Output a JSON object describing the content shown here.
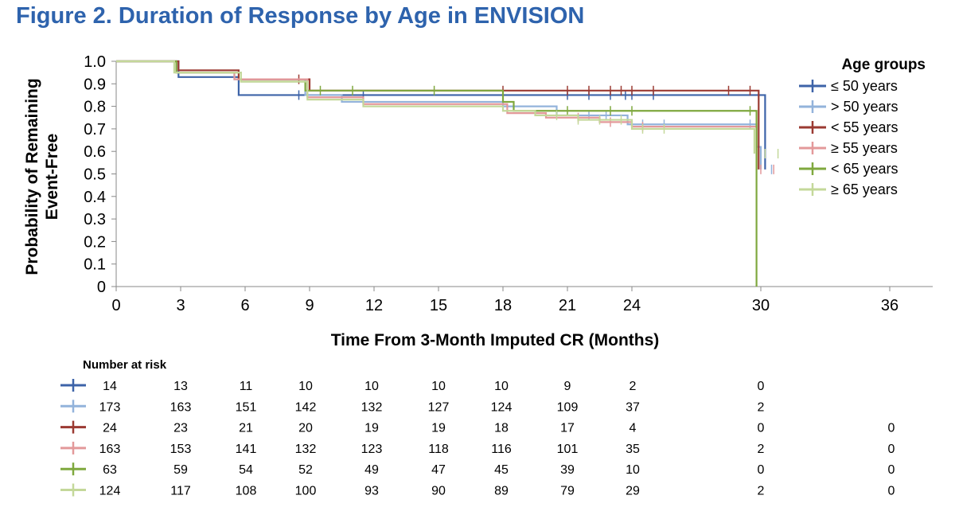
{
  "title": "Figure 2. Duration of Response by Age in ENVISION",
  "chart_data": {
    "type": "line",
    "subtype": "kaplan-meier",
    "xlabel": "Time From 3-Month Imputed CR (Months)",
    "ylabel_lines": [
      "Probability of Remaining",
      "Event-Free"
    ],
    "xlim": [
      0,
      38
    ],
    "ylim": [
      0,
      1
    ],
    "x_ticks": [
      0,
      3,
      6,
      9,
      12,
      15,
      18,
      21,
      24,
      30,
      36
    ],
    "y_ticks": [
      0,
      0.1,
      0.2,
      0.3,
      0.4,
      0.5,
      0.6,
      0.7,
      0.8,
      0.9,
      1.0
    ],
    "y_tick_labels": [
      "0",
      "0.1",
      "0.2",
      "0.3",
      "0.4",
      "0.5",
      "0.6",
      "0.7",
      "0.8",
      "0.9",
      "1.0"
    ],
    "grid": false,
    "legend": {
      "title": "Age groups",
      "position": "right"
    },
    "series": [
      {
        "name": "≤ 50 years",
        "color": "#3d63a8",
        "x": [
          0,
          2.9,
          5.7,
          30.2
        ],
        "y": [
          1.0,
          0.93,
          0.85,
          0.52
        ],
        "censor_x": [
          8.5,
          11.5,
          21.0,
          22.0,
          23.0,
          23.7,
          24.0,
          25.0
        ]
      },
      {
        "name": "> 50 years",
        "color": "#93b3db",
        "x": [
          0,
          2.8,
          5.5,
          8.8,
          10.5,
          18.0,
          20.5,
          23.8,
          29.8,
          30.0
        ],
        "y": [
          1.0,
          0.95,
          0.92,
          0.85,
          0.82,
          0.8,
          0.76,
          0.72,
          0.62,
          0.52
        ],
        "censor_x": [
          22.0,
          22.8,
          24.5,
          25.5,
          29.5,
          30.5
        ]
      },
      {
        "name": "< 55 years",
        "color": "#9b3a32",
        "x": [
          0,
          2.9,
          5.7,
          9.0,
          29.9
        ],
        "y": [
          1.0,
          0.96,
          0.92,
          0.87,
          0.52
        ],
        "censor_x": [
          8.5,
          18.0,
          21.0,
          22.0,
          23.0,
          23.5,
          24.0,
          25.0,
          28.5,
          29.5
        ]
      },
      {
        "name": "≥ 55 years",
        "color": "#e3999a",
        "x": [
          0,
          2.8,
          5.5,
          8.9,
          11.5,
          18.2,
          20.0,
          22.5,
          24.0,
          29.8
        ],
        "y": [
          1.0,
          0.95,
          0.92,
          0.84,
          0.81,
          0.77,
          0.75,
          0.73,
          0.71,
          0.52
        ],
        "censor_x": [
          21.5,
          23.0,
          24.5,
          30.0,
          30.6
        ]
      },
      {
        "name": "< 65 years",
        "color": "#7fa83e",
        "x": [
          0,
          2.8,
          5.8,
          8.8,
          18.0,
          18.5,
          29.8
        ],
        "y": [
          1.0,
          0.95,
          0.91,
          0.87,
          0.82,
          0.78,
          0.0
        ],
        "censor_x": [
          9.5,
          11.0,
          14.8,
          21.0,
          23.0,
          24.0,
          29.5
        ]
      },
      {
        "name": "≥ 65 years",
        "color": "#c4d89a",
        "x": [
          0,
          2.7,
          5.8,
          8.9,
          11.5,
          18.0,
          19.5,
          21.5,
          24.0,
          29.7
        ],
        "y": [
          1.0,
          0.95,
          0.91,
          0.83,
          0.8,
          0.78,
          0.76,
          0.74,
          0.7,
          0.59
        ],
        "censor_x": [
          20.5,
          21.5,
          22.5,
          23.5,
          24.5,
          25.5,
          30.2,
          30.8
        ]
      }
    ],
    "at_risk": {
      "title": "Number at risk",
      "times": [
        0,
        3,
        6,
        9,
        12,
        15,
        18,
        21,
        24,
        30,
        36
      ],
      "rows": [
        [
          "14",
          "13",
          "11",
          "10",
          "10",
          "10",
          "10",
          "9",
          "2",
          "0",
          ""
        ],
        [
          "173",
          "163",
          "151",
          "142",
          "132",
          "127",
          "124",
          "109",
          "37",
          "2",
          ""
        ],
        [
          "24",
          "23",
          "21",
          "20",
          "19",
          "19",
          "18",
          "17",
          "4",
          "0",
          "0"
        ],
        [
          "163",
          "153",
          "141",
          "132",
          "123",
          "118",
          "116",
          "101",
          "35",
          "2",
          "0"
        ],
        [
          "63",
          "59",
          "54",
          "52",
          "49",
          "47",
          "45",
          "39",
          "10",
          "0",
          "0"
        ],
        [
          "124",
          "117",
          "108",
          "100",
          "93",
          "90",
          "89",
          "79",
          "29",
          "2",
          "0"
        ]
      ]
    }
  }
}
